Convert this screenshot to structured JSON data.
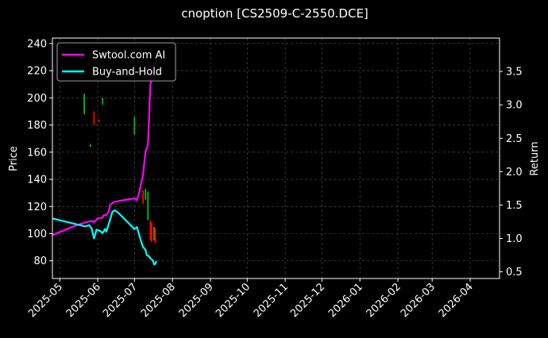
{
  "chart_data": {
    "type": "line",
    "title": "cnoption [CS2509-C-2550.DCE]",
    "xlabel": "",
    "ylabel": "Price",
    "y2label": "Return",
    "x_range": [
      "2025-04-25",
      "2026-04-25"
    ],
    "ylim": [
      67,
      244
    ],
    "y2lim": [
      0.4,
      4.0
    ],
    "y_ticks": [
      "80",
      "100",
      "120",
      "140",
      "160",
      "180",
      "200",
      "220",
      "240"
    ],
    "y2_ticks": [
      "0.5",
      "1.0",
      "1.5",
      "2.0",
      "2.5",
      "3.0",
      "3.5"
    ],
    "x_ticks": [
      "2025-05",
      "2025-06",
      "2025-07",
      "2025-08",
      "2025-09",
      "2025-10",
      "2025-11",
      "2025-12",
      "2026-01",
      "2026-02",
      "2026-03",
      "2026-04"
    ],
    "grid": true,
    "legend": {
      "placement": "top-left",
      "entries": [
        "Swtool.com AI",
        "Buy-and-Hold"
      ]
    },
    "colors": {
      "background": "#000000",
      "ai": "#ff00ff",
      "buyhold": "#00ffff",
      "up": "#00c000",
      "down": "#ff0000",
      "grid": "#555555"
    },
    "series": [
      {
        "name": "Swtool.com AI",
        "axis": "right",
        "points": [
          [
            "2025-04-25",
            1.05
          ],
          [
            "2025-05-15",
            1.2
          ],
          [
            "2025-05-26",
            1.26
          ],
          [
            "2025-05-28",
            1.26
          ],
          [
            "2025-05-29",
            1.24
          ],
          [
            "2025-06-01",
            1.3
          ],
          [
            "2025-06-05",
            1.31
          ],
          [
            "2025-06-06",
            1.35
          ],
          [
            "2025-06-08",
            1.35
          ],
          [
            "2025-06-10",
            1.4
          ],
          [
            "2025-06-11",
            1.5
          ],
          [
            "2025-06-13",
            1.53
          ],
          [
            "2025-06-15",
            1.55
          ],
          [
            "2025-07-01",
            1.6
          ],
          [
            "2025-07-03",
            1.57
          ],
          [
            "2025-07-05",
            1.7
          ],
          [
            "2025-07-08",
            1.95
          ],
          [
            "2025-07-10",
            2.3
          ],
          [
            "2025-07-12",
            2.4
          ],
          [
            "2025-07-14",
            3.3
          ],
          [
            "2025-07-17",
            3.6
          ],
          [
            "2025-07-19",
            3.65
          ]
        ]
      },
      {
        "name": "Buy-and-Hold",
        "axis": "right",
        "points": [
          [
            "2025-04-25",
            1.3
          ],
          [
            "2025-05-22",
            1.18
          ],
          [
            "2025-05-25",
            1.2
          ],
          [
            "2025-05-27",
            1.15
          ],
          [
            "2025-05-29",
            1.0
          ],
          [
            "2025-05-31",
            1.13
          ],
          [
            "2025-06-03",
            1.11
          ],
          [
            "2025-06-05",
            1.08
          ],
          [
            "2025-06-07",
            1.14
          ],
          [
            "2025-06-08",
            1.1
          ],
          [
            "2025-06-10",
            1.22
          ],
          [
            "2025-06-13",
            1.4
          ],
          [
            "2025-06-15",
            1.42
          ],
          [
            "2025-06-18",
            1.38
          ],
          [
            "2025-07-01",
            1.14
          ],
          [
            "2025-07-03",
            1.17
          ],
          [
            "2025-07-06",
            0.98
          ],
          [
            "2025-07-08",
            0.87
          ],
          [
            "2025-07-10",
            0.83
          ],
          [
            "2025-07-11",
            0.75
          ],
          [
            "2025-07-13",
            0.73
          ],
          [
            "2025-07-14",
            0.7
          ],
          [
            "2025-07-16",
            0.67
          ],
          [
            "2025-07-17",
            0.61
          ],
          [
            "2025-07-18",
            0.62
          ],
          [
            "2025-07-19",
            0.66
          ]
        ]
      }
    ],
    "candles": [
      {
        "date": "2025-05-21",
        "low": 188,
        "high": 203,
        "dir": "up"
      },
      {
        "date": "2025-05-26",
        "low": 164,
        "high": 166,
        "dir": "up"
      },
      {
        "date": "2025-05-29",
        "low": 180,
        "high": 190,
        "dir": "down"
      },
      {
        "date": "2025-06-02",
        "low": 182,
        "high": 184,
        "dir": "down"
      },
      {
        "date": "2025-06-05",
        "low": 195,
        "high": 200,
        "dir": "up"
      },
      {
        "date": "2025-07-01",
        "low": 173,
        "high": 186,
        "dir": "up"
      },
      {
        "date": "2025-07-08",
        "low": 122,
        "high": 132,
        "dir": "down"
      },
      {
        "date": "2025-07-10",
        "low": 125,
        "high": 133,
        "dir": "up"
      },
      {
        "date": "2025-07-12",
        "low": 110,
        "high": 131,
        "dir": "up"
      },
      {
        "date": "2025-07-14",
        "low": 95,
        "high": 110,
        "dir": "down"
      },
      {
        "date": "2025-07-15",
        "low": 94,
        "high": 108,
        "dir": "down"
      },
      {
        "date": "2025-07-17",
        "low": 95,
        "high": 105,
        "dir": "up"
      },
      {
        "date": "2025-07-18",
        "low": 93,
        "high": 104,
        "dir": "down"
      }
    ]
  }
}
